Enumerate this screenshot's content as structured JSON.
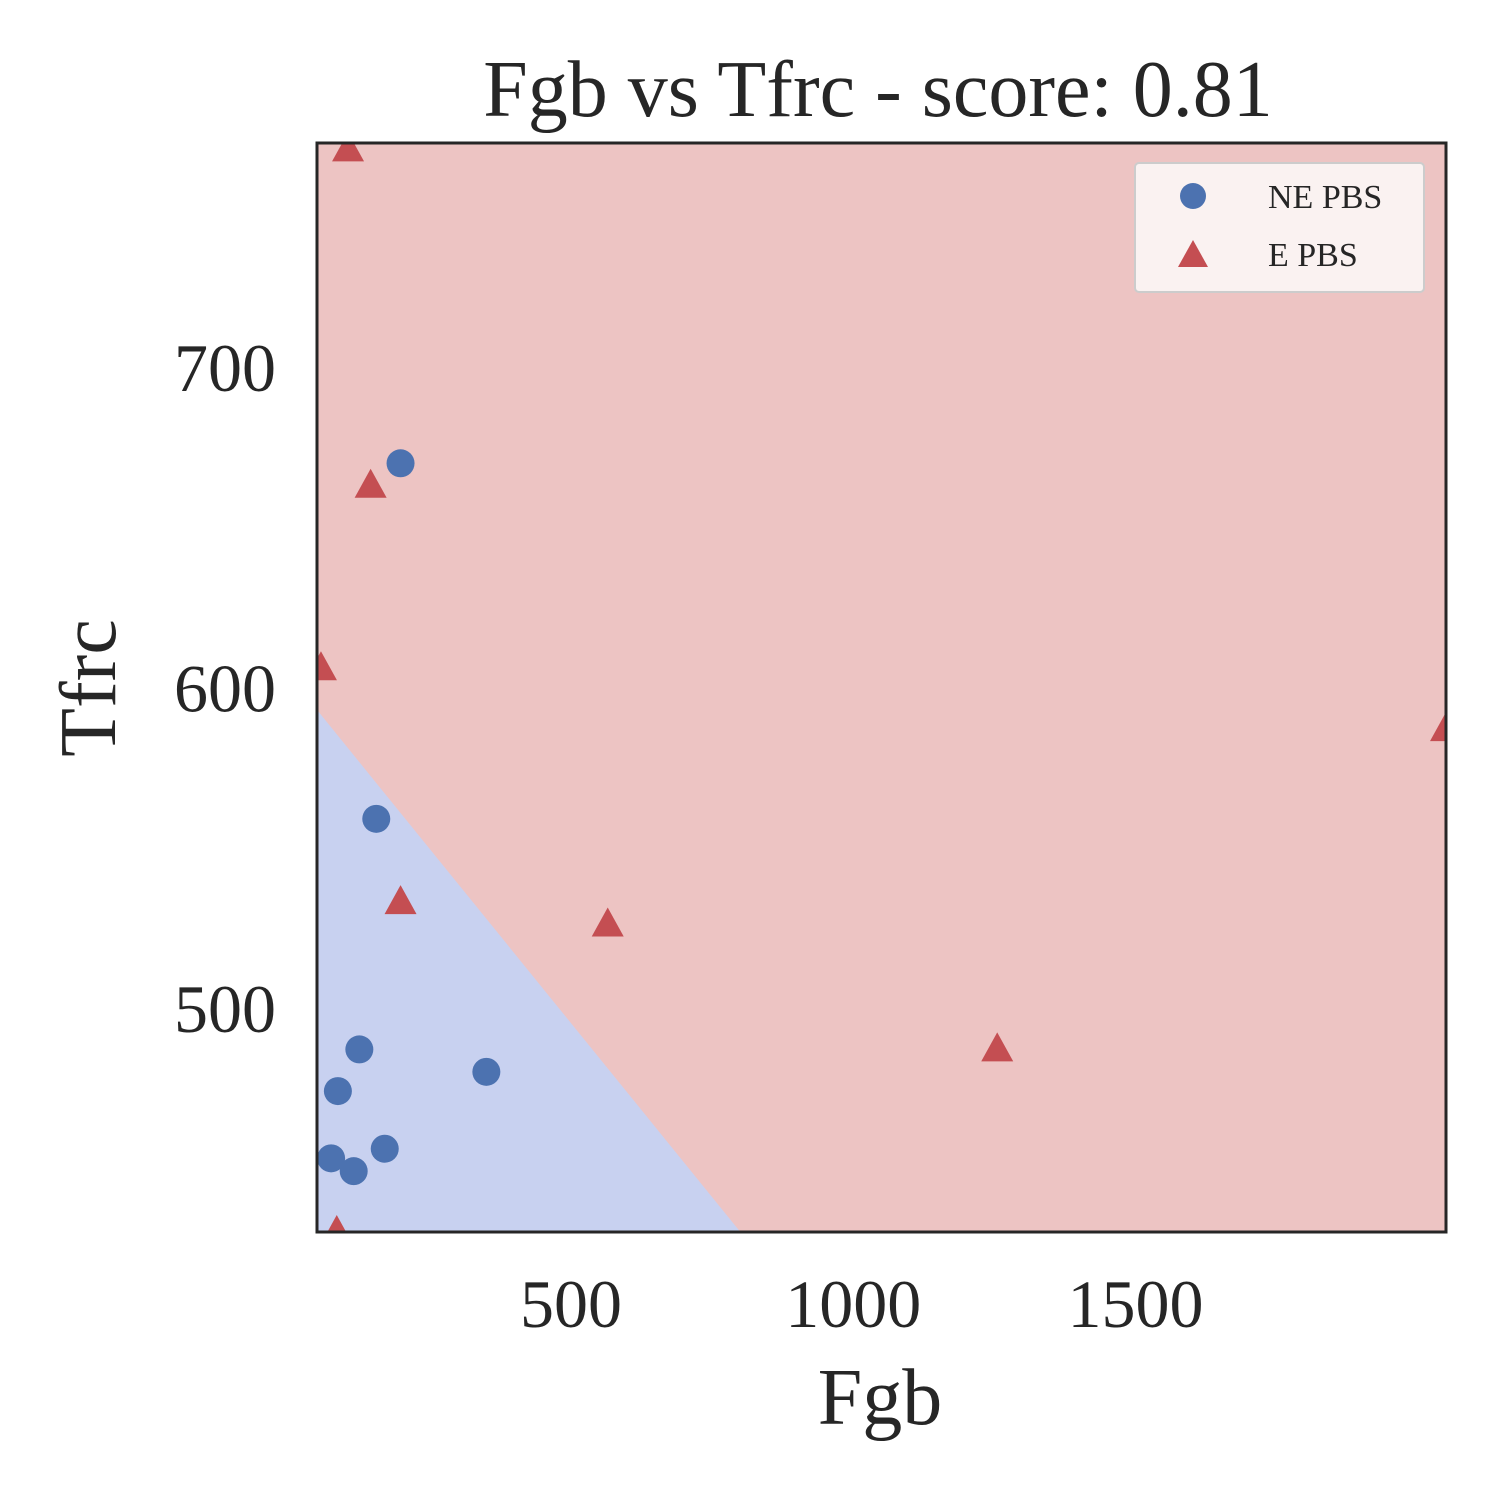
{
  "chart_data": {
    "type": "scatter",
    "title": "Fgb vs Tfrc - score: 0.81",
    "xlabel": "Fgb",
    "ylabel": "Tfrc",
    "xlim": [
      50,
      2050
    ],
    "ylim": [
      430,
      770
    ],
    "xticks": [
      500,
      1000,
      1500
    ],
    "yticks": [
      500,
      600,
      700
    ],
    "grid": false,
    "legend_position": "top-right",
    "decision_boundary": {
      "points": [
        [
          50,
          593
        ],
        [
          800,
          430
        ]
      ],
      "lower_left_class": "NE PBS",
      "upper_right_class": "E PBS"
    },
    "region_colors": {
      "NE PBS": "#c8d1f0",
      "E PBS": "#edc4c3"
    },
    "series": [
      {
        "name": "NE PBS",
        "marker": "circle",
        "color": "#4c72b0",
        "points": [
          [
            198,
            670
          ],
          [
            155,
            559
          ],
          [
            125,
            487
          ],
          [
            87,
            474
          ],
          [
            350,
            480
          ],
          [
            170,
            456
          ],
          [
            75,
            453
          ],
          [
            115,
            449
          ]
        ]
      },
      {
        "name": "E PBS",
        "marker": "triangle",
        "color": "#c44e52",
        "points": [
          [
            105,
            768
          ],
          [
            145,
            663
          ],
          [
            57,
            606
          ],
          [
            198,
            533
          ],
          [
            565,
            526
          ],
          [
            1255,
            487
          ],
          [
            85,
            430
          ],
          [
            2050,
            587
          ]
        ]
      }
    ]
  }
}
